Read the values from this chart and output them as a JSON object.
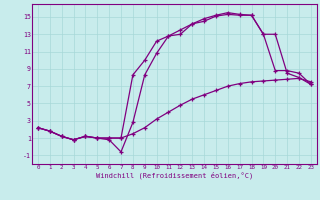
{
  "xlabel": "Windchill (Refroidissement éolien,°C)",
  "bg_color": "#c8ecec",
  "line_color": "#800080",
  "grid_color": "#a8d8d8",
  "xlim": [
    -0.5,
    23.5
  ],
  "ylim": [
    -2.0,
    16.5
  ],
  "xticks": [
    0,
    1,
    2,
    3,
    4,
    5,
    6,
    7,
    8,
    9,
    10,
    11,
    12,
    13,
    14,
    15,
    16,
    17,
    18,
    19,
    20,
    21,
    22,
    23
  ],
  "yticks": [
    -1,
    1,
    3,
    5,
    7,
    9,
    11,
    13,
    15
  ],
  "line1_x": [
    0,
    1,
    2,
    3,
    4,
    5,
    6,
    7,
    8,
    9,
    10,
    11,
    12,
    13,
    14,
    15,
    16,
    17,
    18,
    19,
    20,
    21,
    22,
    23
  ],
  "line1_y": [
    2.2,
    1.8,
    1.2,
    0.8,
    1.2,
    1.0,
    0.8,
    -0.6,
    2.8,
    8.3,
    10.8,
    12.8,
    13.0,
    14.2,
    14.5,
    15.1,
    15.3,
    15.2,
    15.2,
    13.0,
    8.8,
    8.8,
    8.5,
    7.2
  ],
  "line2_x": [
    0,
    1,
    2,
    3,
    4,
    5,
    6,
    7,
    8,
    9,
    10,
    11,
    12,
    13,
    14,
    15,
    16,
    17,
    18,
    19,
    20,
    21,
    22,
    23
  ],
  "line2_y": [
    2.2,
    1.8,
    1.2,
    0.8,
    1.2,
    1.0,
    1.0,
    1.0,
    8.3,
    10.0,
    12.2,
    12.8,
    13.5,
    14.2,
    14.8,
    15.2,
    15.5,
    15.3,
    15.2,
    13.0,
    13.0,
    8.5,
    8.0,
    7.2
  ],
  "line3_x": [
    0,
    1,
    2,
    3,
    4,
    5,
    6,
    7,
    8,
    9,
    10,
    11,
    12,
    13,
    14,
    15,
    16,
    17,
    18,
    19,
    20,
    21,
    22,
    23
  ],
  "line3_y": [
    2.2,
    1.8,
    1.2,
    0.8,
    1.2,
    1.0,
    1.0,
    1.0,
    1.5,
    2.2,
    3.2,
    4.0,
    4.8,
    5.5,
    6.0,
    6.5,
    7.0,
    7.3,
    7.5,
    7.6,
    7.7,
    7.8,
    7.9,
    7.5
  ]
}
